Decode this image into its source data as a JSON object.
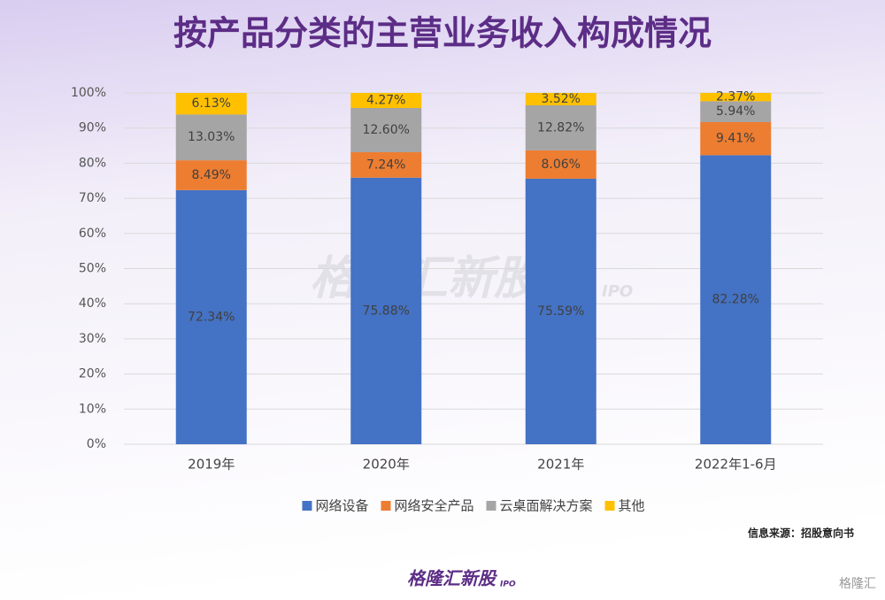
{
  "chart_data": {
    "type": "stacked_bar",
    "title": "按产品分类的主营业务收入构成情况",
    "categories": [
      "2019年",
      "2020年",
      "2021年",
      "2022年1-6月"
    ],
    "series": [
      {
        "name": "网络设备",
        "color": "#4472c4",
        "values": [
          72.34,
          75.88,
          75.59,
          82.28
        ],
        "value_labels": [
          "72.34%",
          "75.88%",
          "75.59%",
          "82.28%"
        ]
      },
      {
        "name": "网络安全产品",
        "color": "#ed7d31",
        "values": [
          8.49,
          7.24,
          8.06,
          9.41
        ],
        "value_labels": [
          "8.49%",
          "7.24%",
          "8.06%",
          "9.41%"
        ]
      },
      {
        "name": "云桌面解决方案",
        "color": "#a5a5a5",
        "values": [
          13.03,
          12.6,
          12.82,
          5.94
        ],
        "value_labels": [
          "13.03%",
          "12.60%",
          "12.82%",
          "5.94%"
        ]
      },
      {
        "name": "其他",
        "color": "#ffc000",
        "values": [
          6.13,
          4.27,
          3.52,
          2.37
        ],
        "value_labels": [
          "6.13%",
          "4.27%",
          "3.52%",
          "2.37%"
        ]
      }
    ],
    "ylim": [
      0,
      100
    ],
    "yticks": [
      {
        "value": 0,
        "label": "0%"
      },
      {
        "value": 10,
        "label": "10%"
      },
      {
        "value": 20,
        "label": "20%"
      },
      {
        "value": 30,
        "label": "30%"
      },
      {
        "value": 40,
        "label": "40%"
      },
      {
        "value": 50,
        "label": "50%"
      },
      {
        "value": 60,
        "label": "60%"
      },
      {
        "value": 70,
        "label": "70%"
      },
      {
        "value": 80,
        "label": "80%"
      },
      {
        "value": 90,
        "label": "90%"
      },
      {
        "value": 100,
        "label": "100%"
      }
    ],
    "grid": true,
    "legend": "bottom",
    "source": "信息来源：招股意向书"
  },
  "watermark": {
    "name": "格隆汇新股",
    "tag": "IPO"
  },
  "footer": {
    "name": "格隆汇新股",
    "tag": "IPO"
  },
  "corner_logo": "格隆汇"
}
